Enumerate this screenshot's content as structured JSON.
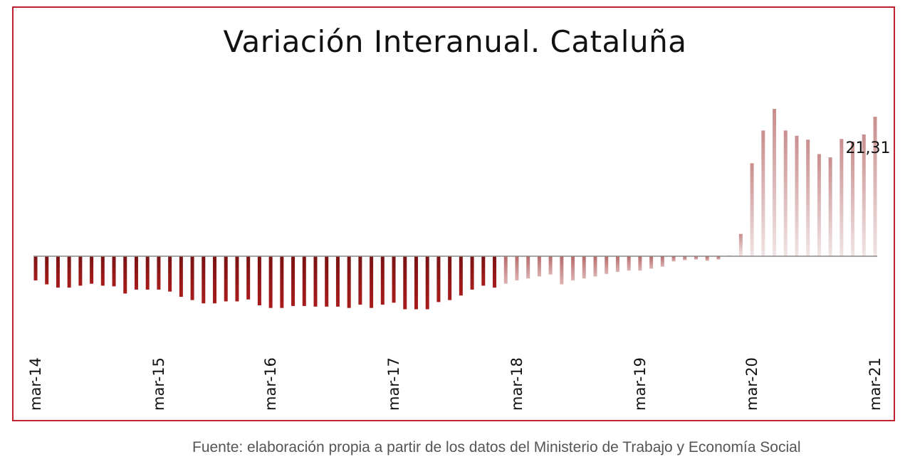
{
  "chart_data": {
    "type": "bar",
    "title": "Variación Interanual. Cataluña",
    "xlabel": "",
    "ylabel": "",
    "grid": false,
    "legend": "none",
    "colors": {
      "negative": "#a81c1c",
      "positive": "#d9b8b8",
      "frame": "#c0232f",
      "baseline": "#888888"
    },
    "x_tick_labels": [
      "mar-14",
      "mar-15",
      "mar-16",
      "mar-17",
      "mar-18",
      "mar-19",
      "mar-20",
      "mar-21"
    ],
    "values": [
      -3.7,
      -4.3,
      -4.8,
      -4.8,
      -4.5,
      -4.2,
      -4.5,
      -4.6,
      -5.7,
      -5.1,
      -5.1,
      -5.1,
      -5.4,
      -6.2,
      -6.7,
      -7.2,
      -7.2,
      -6.9,
      -6.9,
      -6.6,
      -7.5,
      -7.9,
      -7.9,
      -7.6,
      -7.6,
      -7.7,
      -7.7,
      -7.7,
      -7.9,
      -7.4,
      -7.9,
      -7.4,
      -7.1,
      -8.1,
      -8.1,
      -8.1,
      -7.0,
      -6.7,
      -6.0,
      -5.1,
      -4.5,
      -4.8,
      -4.2,
      -3.7,
      -3.4,
      -3.1,
      -2.8,
      -4.3,
      -3.7,
      -3.4,
      -3.1,
      -2.7,
      -2.4,
      -2.2,
      -2.2,
      -1.9,
      -1.6,
      -0.8,
      -0.6,
      -0.5,
      -0.7,
      -0.5,
      0.1,
      3.4,
      14.2,
      19.2,
      22.5,
      19.2,
      18.4,
      17.8,
      15.6,
      15.1,
      17.9,
      17.5,
      18.6,
      21.31
    ],
    "ylim": [
      -13,
      27
    ],
    "annotations": [
      {
        "index": 75,
        "text": "21,31"
      }
    ]
  },
  "source": "Fuente: elaboración propia a partir de los datos del Ministerio de Trabajo y Economía Social"
}
